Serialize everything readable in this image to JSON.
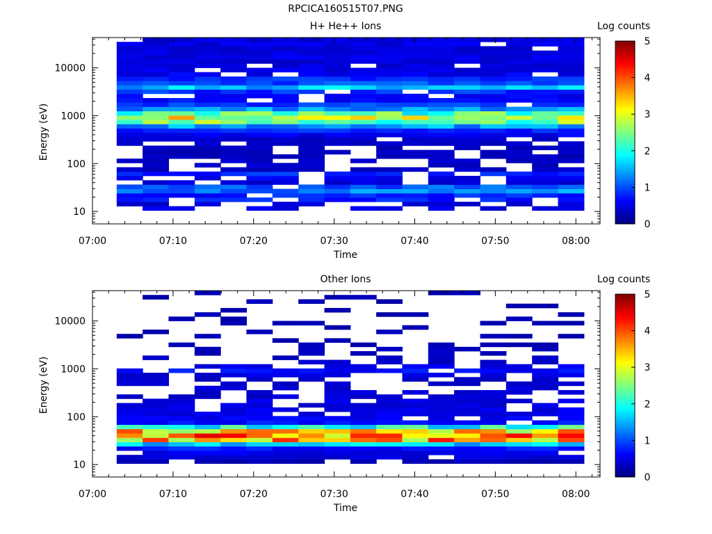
{
  "figure_title": "RPCICA160515T07.PNG",
  "chart_data": [
    {
      "type": "heatmap",
      "title": "H+ He++ Ions",
      "xlabel": "Time",
      "ylabel": "Energy (eV)",
      "y_scale": "log",
      "xlim": [
        "07:00",
        "08:03"
      ],
      "ylim": [
        5.5,
        43000
      ],
      "x_ticks": [
        "07:00",
        "07:10",
        "07:20",
        "07:30",
        "07:40",
        "07:50",
        "08:00"
      ],
      "y_ticks": [
        10,
        100,
        1000,
        10000
      ],
      "y_tick_labels": [
        "10",
        "100",
        "1000",
        "10000"
      ],
      "colorbar": {
        "label": "Log counts",
        "range": [
          0,
          5
        ],
        "ticks": [
          0,
          1,
          2,
          3,
          4,
          5
        ]
      },
      "time_bins": {
        "start": "07:03",
        "end": "08:01",
        "count": 18
      },
      "energy_bins": {
        "min": 10.5,
        "max": 43000,
        "count": 40
      },
      "profile_by_energy_bin": [
        0.5,
        0.4,
        0.75,
        0.75,
        1.25,
        1.05,
        0.45,
        0.55,
        0.8,
        0.35,
        0.35,
        0.35,
        0.3,
        0.3,
        0.3,
        0.35,
        0.35,
        0.55,
        0.8,
        1.4,
        2.5,
        2.9,
        2.2,
        1.35,
        0.9,
        0.65,
        0.6,
        0.85,
        1.55,
        1.0,
        0.8,
        0.55,
        0.5,
        0.45,
        0.45,
        0.5,
        0.45,
        0.4,
        0.5,
        0.45
      ],
      "empty_fraction_by_energy_bin": [
        0.55,
        0.4,
        0.25,
        0.05,
        0.0,
        0.05,
        0.25,
        0.3,
        0.3,
        0.45,
        0.4,
        0.4,
        0.25,
        0.3,
        0.3,
        0.15,
        0.15,
        0.05,
        0.0,
        0.0,
        0.0,
        0.0,
        0.0,
        0.0,
        0.05,
        0.05,
        0.1,
        0.05,
        0.0,
        0.0,
        0.0,
        0.05,
        0.05,
        0.1,
        0.1,
        0.05,
        0.1,
        0.1,
        0.05,
        0.05
      ],
      "random_seed": 17
    },
    {
      "type": "heatmap",
      "title": "Other Ions",
      "xlabel": "Time",
      "ylabel": "Energy (eV)",
      "y_scale": "log",
      "xlim": [
        "07:00",
        "08:03"
      ],
      "ylim": [
        5.5,
        43000
      ],
      "x_ticks": [
        "07:00",
        "07:10",
        "07:20",
        "07:30",
        "07:40",
        "07:50",
        "08:00"
      ],
      "y_ticks": [
        10,
        100,
        1000,
        10000
      ],
      "y_tick_labels": [
        "10",
        "100",
        "1000",
        "10000"
      ],
      "colorbar": {
        "label": "Log counts",
        "range": [
          0,
          5
        ],
        "ticks": [
          0,
          1,
          2,
          3,
          4,
          5
        ]
      },
      "time_bins": {
        "start": "07:03",
        "end": "08:01",
        "count": 18
      },
      "energy_bins": {
        "min": 10.5,
        "max": 43000,
        "count": 40
      },
      "profile_by_energy_bin": [
        0.25,
        0.45,
        0.5,
        0.7,
        1.6,
        3.4,
        3.7,
        3.3,
        2.0,
        0.7,
        0.55,
        0.5,
        0.5,
        0.45,
        0.45,
        0.4,
        0.4,
        0.4,
        0.35,
        0.35,
        0.45,
        0.65,
        0.55,
        0.35,
        0.3,
        0.3,
        0.3,
        0.25,
        0.25,
        0.25,
        0.25,
        0.25,
        0.25,
        0.25,
        0.25,
        0.25,
        0.25,
        0.25,
        0.25,
        0.25
      ],
      "empty_fraction_by_energy_bin": [
        0.1,
        0.1,
        0.15,
        0.05,
        0.0,
        0.0,
        0.0,
        0.0,
        0.0,
        0.05,
        0.15,
        0.1,
        0.15,
        0.2,
        0.3,
        0.35,
        0.4,
        0.45,
        0.5,
        0.55,
        0.3,
        0.2,
        0.45,
        0.6,
        0.65,
        0.7,
        0.7,
        0.72,
        0.75,
        0.75,
        0.75,
        0.78,
        0.78,
        0.8,
        0.8,
        0.82,
        0.82,
        0.82,
        0.85,
        0.85
      ],
      "random_seed": 91
    }
  ]
}
